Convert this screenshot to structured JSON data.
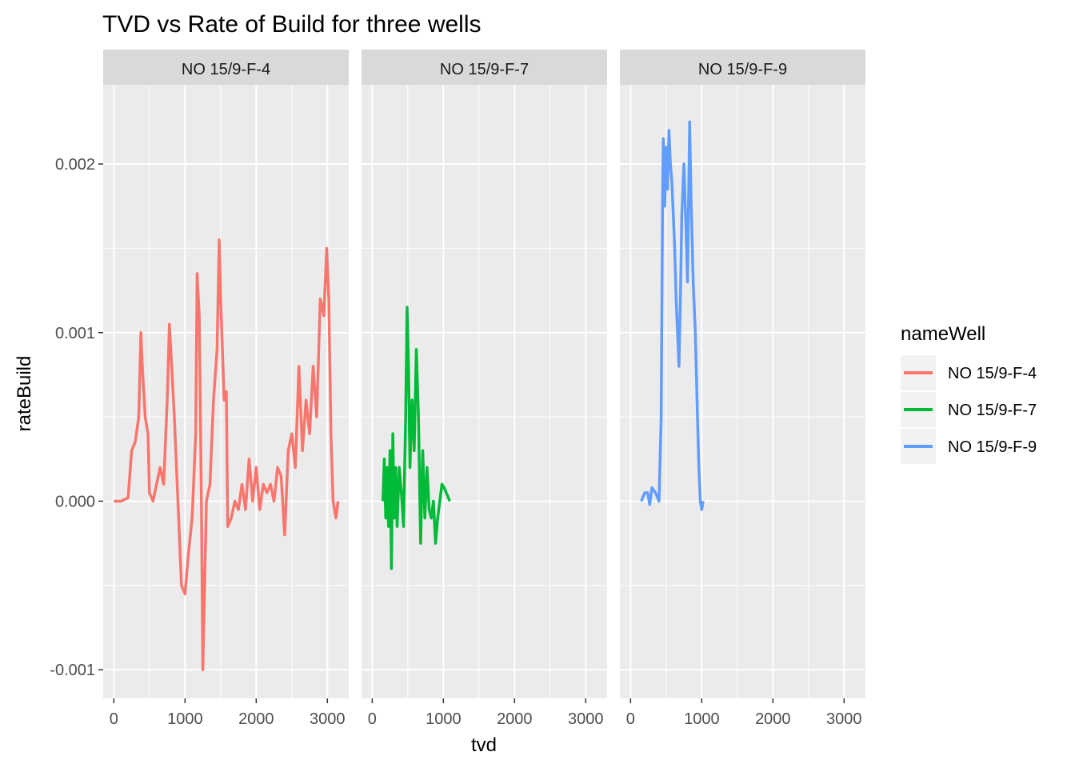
{
  "chart_data": {
    "type": "line",
    "title": "TVD vs Rate of Build for three wells",
    "xlabel": "tvd",
    "ylabel": "rateBuild",
    "xlim": [
      -150,
      3300
    ],
    "ylim": [
      -0.00117,
      0.00247
    ],
    "x_ticks": [
      0,
      1000,
      2000,
      3000
    ],
    "x_tick_labels": [
      "0",
      "1000",
      "2000",
      "3000"
    ],
    "y_ticks": [
      -0.001,
      0.0,
      0.001,
      0.002
    ],
    "y_tick_labels": [
      "-0.001",
      "0.000",
      "0.001",
      "0.002"
    ],
    "grid": true,
    "legend": {
      "title": "nameWell",
      "position": "right"
    },
    "series": [
      {
        "name": "NO 15/9-F-4",
        "color": "#F8766D",
        "points": [
          [
            0,
            0.0
          ],
          [
            100,
            0.0
          ],
          [
            200,
            2e-05
          ],
          [
            250,
            0.0003
          ],
          [
            300,
            0.00035
          ],
          [
            350,
            0.0005
          ],
          [
            380,
            0.001
          ],
          [
            400,
            0.0008
          ],
          [
            440,
            0.0005
          ],
          [
            480,
            0.0004
          ],
          [
            500,
            5e-05
          ],
          [
            550,
            0.0
          ],
          [
            600,
            0.0001
          ],
          [
            650,
            0.0002
          ],
          [
            700,
            0.0001
          ],
          [
            750,
            0.0006
          ],
          [
            780,
            0.00105
          ],
          [
            800,
            0.0009
          ],
          [
            850,
            0.0005
          ],
          [
            900,
            0.0
          ],
          [
            950,
            -0.0005
          ],
          [
            1000,
            -0.00055
          ],
          [
            1050,
            -0.0003
          ],
          [
            1100,
            -0.0001
          ],
          [
            1150,
            0.0004
          ],
          [
            1170,
            0.00135
          ],
          [
            1200,
            0.0011
          ],
          [
            1230,
            0.0
          ],
          [
            1250,
            -0.001
          ],
          [
            1280,
            -0.0004
          ],
          [
            1300,
            0.0
          ],
          [
            1350,
            0.0001
          ],
          [
            1400,
            0.0006
          ],
          [
            1450,
            0.0009
          ],
          [
            1480,
            0.00155
          ],
          [
            1500,
            0.0012
          ],
          [
            1550,
            0.0006
          ],
          [
            1580,
            0.00065
          ],
          [
            1600,
            -0.00015
          ],
          [
            1650,
            -0.0001
          ],
          [
            1700,
            0.0
          ],
          [
            1750,
            -5e-05
          ],
          [
            1800,
            0.0001
          ],
          [
            1850,
            -5e-05
          ],
          [
            1900,
            0.00025
          ],
          [
            1950,
            0.0
          ],
          [
            2000,
            0.0002
          ],
          [
            2050,
            -5e-05
          ],
          [
            2100,
            0.0001
          ],
          [
            2150,
            5e-05
          ],
          [
            2200,
            0.0001
          ],
          [
            2250,
            0.0
          ],
          [
            2300,
            0.0002
          ],
          [
            2350,
            0.00015
          ],
          [
            2400,
            -0.0002
          ],
          [
            2450,
            0.0003
          ],
          [
            2500,
            0.0004
          ],
          [
            2550,
            0.0002
          ],
          [
            2600,
            0.0008
          ],
          [
            2650,
            0.0003
          ],
          [
            2700,
            0.0006
          ],
          [
            2750,
            0.0004
          ],
          [
            2800,
            0.0008
          ],
          [
            2850,
            0.0005
          ],
          [
            2900,
            0.0012
          ],
          [
            2950,
            0.0011
          ],
          [
            2990,
            0.0015
          ],
          [
            3020,
            0.0012
          ],
          [
            3050,
            0.0004
          ],
          [
            3080,
            0.0
          ],
          [
            3120,
            -0.0001
          ],
          [
            3150,
            0.0
          ]
        ]
      },
      {
        "name": "NO 15/9-F-7",
        "color": "#00BA38",
        "points": [
          [
            150,
            0.0
          ],
          [
            170,
            0.00025
          ],
          [
            190,
            -0.0001
          ],
          [
            210,
            0.0002
          ],
          [
            230,
            -0.00015
          ],
          [
            250,
            0.0003
          ],
          [
            270,
            -0.0004
          ],
          [
            290,
            0.0004
          ],
          [
            310,
            -0.0001
          ],
          [
            330,
            0.0002
          ],
          [
            350,
            -0.00015
          ],
          [
            380,
            0.0002
          ],
          [
            410,
            5e-05
          ],
          [
            440,
            -0.00015
          ],
          [
            470,
            0.0005
          ],
          [
            490,
            0.00115
          ],
          [
            510,
            0.0008
          ],
          [
            530,
            0.0002
          ],
          [
            560,
            0.0006
          ],
          [
            590,
            0.0003
          ],
          [
            620,
            0.0009
          ],
          [
            650,
            0.0005
          ],
          [
            680,
            -0.00025
          ],
          [
            710,
            0.0003
          ],
          [
            740,
            -0.0001
          ],
          [
            770,
            0.0002
          ],
          [
            800,
            -5e-05
          ],
          [
            830,
            -0.0001
          ],
          [
            860,
            0.0
          ],
          [
            890,
            -0.00025
          ],
          [
            920,
            -0.0001
          ],
          [
            950,
            0.0
          ],
          [
            980,
            0.0001
          ],
          [
            1010,
            8e-05
          ],
          [
            1040,
            5e-05
          ],
          [
            1070,
            2e-05
          ],
          [
            1090,
            0.0
          ]
        ]
      },
      {
        "name": "NO 15/9-F-9",
        "color": "#619CFF",
        "points": [
          [
            150,
            0.0
          ],
          [
            200,
            5e-05
          ],
          [
            240,
            5e-05
          ],
          [
            270,
            -2e-05
          ],
          [
            300,
            8e-05
          ],
          [
            350,
            5e-05
          ],
          [
            400,
            0.0
          ],
          [
            430,
            0.0005
          ],
          [
            450,
            0.0018
          ],
          [
            460,
            0.00215
          ],
          [
            480,
            0.00175
          ],
          [
            500,
            0.0021
          ],
          [
            520,
            0.00185
          ],
          [
            540,
            0.0022
          ],
          [
            560,
            0.002
          ],
          [
            580,
            0.0019
          ],
          [
            600,
            0.0017
          ],
          [
            620,
            0.0015
          ],
          [
            640,
            0.0012
          ],
          [
            660,
            0.001
          ],
          [
            680,
            0.0008
          ],
          [
            700,
            0.0012
          ],
          [
            720,
            0.0017
          ],
          [
            750,
            0.002
          ],
          [
            780,
            0.0016
          ],
          [
            800,
            0.0013
          ],
          [
            830,
            0.00225
          ],
          [
            850,
            0.0018
          ],
          [
            880,
            0.0013
          ],
          [
            910,
            0.001
          ],
          [
            940,
            0.0005
          ],
          [
            960,
            0.0002
          ],
          [
            980,
            0.0
          ],
          [
            1000,
            -5e-05
          ],
          [
            1020,
            0.0
          ]
        ]
      }
    ]
  }
}
